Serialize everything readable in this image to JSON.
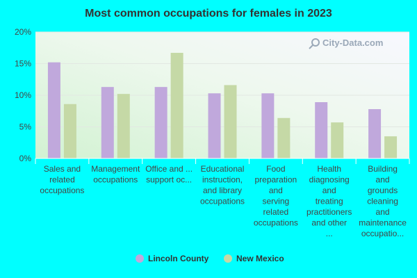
{
  "chart_data": {
    "type": "bar",
    "title": "Most common occupations for females in 2023",
    "ylim": [
      0,
      20
    ],
    "yticks": [
      "0%",
      "5%",
      "10%",
      "15%",
      "20%"
    ],
    "categories": [
      [
        "Sales and",
        "related",
        "occupations"
      ],
      [
        "Management",
        "occupations"
      ],
      [
        "Office and ...",
        "support oc..."
      ],
      [
        "Educational",
        "instruction,",
        "and library",
        "occupations"
      ],
      [
        "Food",
        "preparation",
        "and",
        "serving",
        "related",
        "occupations"
      ],
      [
        "Health",
        "diagnosing",
        "and",
        "treating",
        "practitioners",
        "and other",
        "..."
      ],
      [
        "Building",
        "and",
        "grounds",
        "cleaning",
        "and",
        "maintenance",
        "occupatio..."
      ]
    ],
    "series": [
      {
        "name": "Lincoln County",
        "color": "#c0a8dc",
        "values": [
          15.2,
          11.3,
          11.3,
          10.3,
          10.3,
          8.9,
          7.8
        ]
      },
      {
        "name": "New Mexico",
        "color": "#c5d9a6",
        "values": [
          8.6,
          10.2,
          16.7,
          11.6,
          6.4,
          5.7,
          3.5
        ]
      }
    ],
    "grid": true,
    "legend_position": "bottom"
  },
  "watermark": "City-Data.com"
}
